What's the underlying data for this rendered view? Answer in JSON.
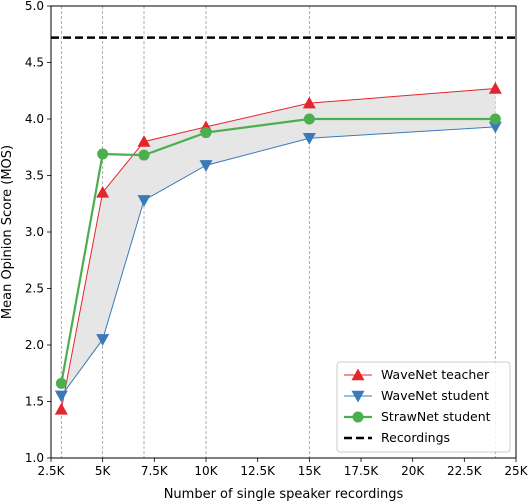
{
  "chart_data": {
    "type": "line",
    "title": "",
    "xlabel": "Number of single speaker recordings",
    "ylabel": "Mean Opinion Score (MOS)",
    "xlim": [
      2500,
      25000
    ],
    "ylim": [
      1.0,
      5.0
    ],
    "x_ticks": [
      {
        "value": 2500,
        "label": "2.5K"
      },
      {
        "value": 5000,
        "label": "5K"
      },
      {
        "value": 7500,
        "label": "7.5K"
      },
      {
        "value": 10000,
        "label": "10K"
      },
      {
        "value": 12500,
        "label": "12.5K"
      },
      {
        "value": 15000,
        "label": "15K"
      },
      {
        "value": 17500,
        "label": "17.5K"
      },
      {
        "value": 20000,
        "label": "20K"
      },
      {
        "value": 22500,
        "label": "22.5K"
      },
      {
        "value": 25000,
        "label": "25K"
      }
    ],
    "y_ticks": [
      {
        "value": 1.0,
        "label": "1.0"
      },
      {
        "value": 1.5,
        "label": "1.5"
      },
      {
        "value": 2.0,
        "label": "2.0"
      },
      {
        "value": 2.5,
        "label": "2.5"
      },
      {
        "value": 3.0,
        "label": "3.0"
      },
      {
        "value": 3.5,
        "label": "3.5"
      },
      {
        "value": 4.0,
        "label": "4.0"
      },
      {
        "value": 4.5,
        "label": "4.5"
      },
      {
        "value": 5.0,
        "label": "5.0"
      }
    ],
    "x": [
      3000,
      5000,
      7000,
      10000,
      15000,
      24000
    ],
    "vertical_gridlines_at_x": true,
    "shaded_band": {
      "between": [
        "WaveNet teacher",
        "WaveNet student"
      ],
      "color": "#e6e6e6"
    },
    "series": [
      {
        "name": "WaveNet teacher",
        "marker": "triangle-up",
        "color": "#e3262b",
        "values": [
          1.43,
          3.35,
          3.8,
          3.93,
          4.14,
          4.27
        ]
      },
      {
        "name": "WaveNet student",
        "marker": "triangle-down",
        "color": "#3a7ab9",
        "values": [
          1.55,
          2.05,
          3.28,
          3.59,
          3.83,
          3.93
        ]
      },
      {
        "name": "StrawNet student",
        "marker": "circle",
        "color": "#4bae4f",
        "values": [
          1.66,
          3.69,
          3.68,
          3.88,
          4.0,
          4.0
        ]
      }
    ],
    "reference_lines": [
      {
        "name": "Recordings",
        "value": 4.72,
        "color": "#000000",
        "style": "dashed"
      }
    ],
    "legend": {
      "placement": "bottom-right",
      "entries": [
        "WaveNet teacher",
        "WaveNet student",
        "StrawNet student",
        "Recordings"
      ]
    }
  }
}
